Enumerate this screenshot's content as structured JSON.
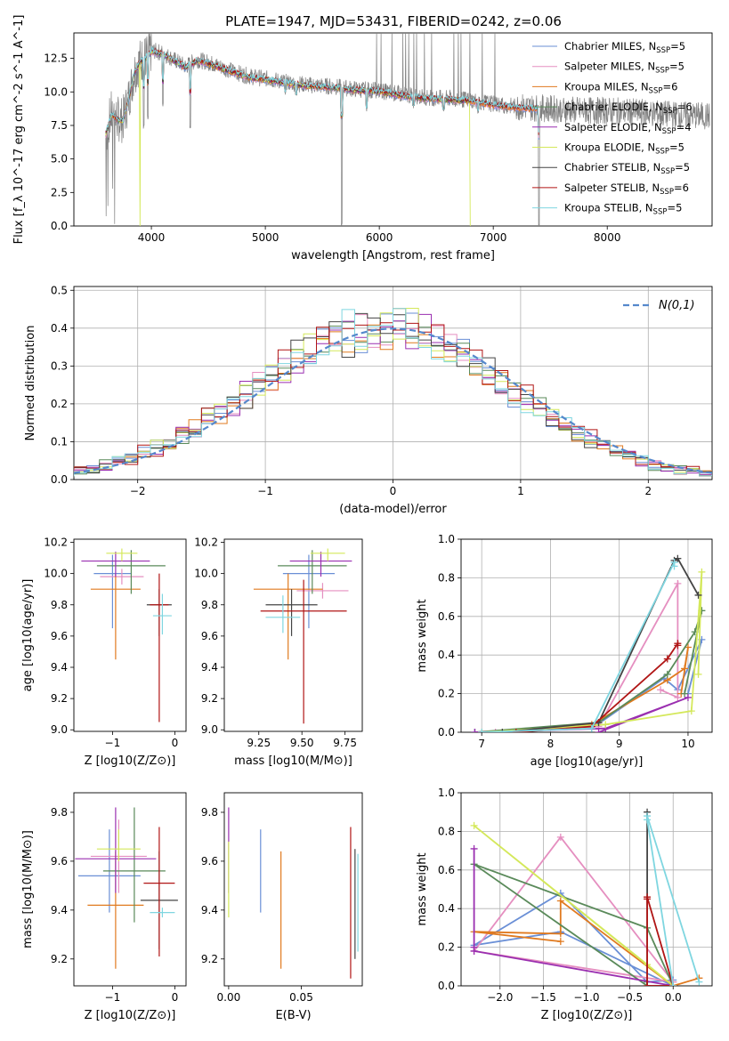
{
  "figure_title": "PLATE=1947, MJD=53431, FIBERID=0242, z=0.06",
  "colors": {
    "Chabrier MILES": "#6a8fd6",
    "Salpeter MILES": "#e58fc0",
    "Kroupa MILES": "#e07a1f",
    "Chabrier ELODIE": "#5a8a5a",
    "Salpeter ELODIE": "#9a2fb0",
    "Kroupa ELODIE": "#d4e85a",
    "Chabrier STELIB": "#444444",
    "Salpeter STELIB": "#b01515",
    "Kroupa STELIB": "#7fd6e0",
    "data": "#808080"
  },
  "chart_data": [
    {
      "id": "spectrum",
      "type": "line",
      "title": "PLATE=1947, MJD=53431, FIBERID=0242, z=0.06",
      "xlabel": "wavelength [Angstrom, rest frame]",
      "ylabel": "Flux [f_λ 10^-17 erg cm^-2 s^-1 A^-1]",
      "xlim": [
        3320,
        8920
      ],
      "ylim": [
        0,
        14.4
      ],
      "xticks": [
        4000,
        5000,
        6000,
        7000,
        8000
      ],
      "yticks": [
        0.0,
        2.5,
        5.0,
        7.5,
        10.0,
        12.5
      ],
      "legend_position": "top-right",
      "legend": [
        "Chabrier MILES, N_SSP=5",
        "Salpeter MILES, N_SSP=5",
        "Kroupa MILES, N_SSP=6",
        "Chabrier ELODIE, N_SSP=6",
        "Salpeter ELODIE, N_SSP=4",
        "Kroupa ELODIE, N_SSP=5",
        "Chabrier STELIB, N_SSP=5",
        "Salpeter STELIB, N_SSP=6",
        "Kroupa STELIB, N_SSP=5"
      ],
      "continuum": {
        "x": [
          3600,
          3650,
          3700,
          3750,
          3800,
          3850,
          3900,
          3950,
          4000,
          4100,
          4200,
          4300,
          4400,
          4500,
          4600,
          4700,
          4800,
          4900,
          5000,
          5200,
          5400,
          5600,
          5800,
          6000,
          6200,
          6400,
          6600,
          6800,
          7000,
          7200,
          7400,
          7600,
          7800,
          8000,
          8200,
          8400,
          8600,
          8900
        ],
        "y": [
          6.9,
          8.4,
          8.0,
          7.9,
          9.5,
          11.5,
          12.3,
          12.6,
          13.1,
          12.9,
          12.4,
          11.9,
          12.4,
          12.2,
          11.9,
          11.6,
          11.3,
          11.1,
          11.0,
          10.7,
          10.5,
          10.4,
          10.2,
          10.1,
          9.8,
          9.6,
          9.5,
          9.4,
          9.1,
          8.9,
          8.8,
          8.7,
          8.6,
          8.6,
          8.5,
          8.4,
          8.3,
          8.2
        ]
      },
      "absorption_dips": [
        {
          "x": 3934,
          "y": 7.5
        },
        {
          "x": 3969,
          "y": 8.0
        },
        {
          "x": 4102,
          "y": 9.0
        },
        {
          "x": 4340,
          "y": 7.5
        },
        {
          "x": 5175,
          "y": 10.0
        },
        {
          "x": 5270,
          "y": 9.8
        },
        {
          "x": 5577,
          "y": 10.3
        },
        {
          "x": 5670,
          "y": 0.0
        },
        {
          "x": 5890,
          "y": 8.8
        },
        {
          "x": 6300,
          "y": 9.0
        },
        {
          "x": 6563,
          "y": 8.7
        },
        {
          "x": 6867,
          "y": 8.6
        },
        {
          "x": 7400,
          "y": 0.0
        },
        {
          "x": 7600,
          "y": 8.0
        }
      ]
    },
    {
      "id": "residuals",
      "type": "step",
      "xlabel": "(data-model)/error",
      "ylabel": "Normed distribution",
      "xlim": [
        -2.5,
        2.5
      ],
      "ylim": [
        0,
        0.51
      ],
      "xticks": [
        -2,
        -1,
        0,
        1,
        2
      ],
      "yticks": [
        0.0,
        0.1,
        0.2,
        0.3,
        0.4,
        0.5
      ],
      "legend_position": "top-right",
      "reference_label": "N(0,1)",
      "reference_color": "#5588cc"
    },
    {
      "id": "age_vs_Z",
      "type": "errorbar",
      "xlabel": "Z [log10(Z/Z⊙)]",
      "ylabel": "age  [log10(age/yr)]",
      "xlim": [
        -1.62,
        0.18
      ],
      "ylim": [
        8.99,
        10.22
      ],
      "xticks": [
        -1,
        0
      ],
      "yticks": [
        9.0,
        9.2,
        9.4,
        9.6,
        9.8,
        10.0,
        10.2
      ],
      "points": [
        {
          "model": "Chabrier MILES",
          "x": -1.0,
          "y": 10.0,
          "xerr": 0.3,
          "yerr": [
            0.35,
            0.12
          ]
        },
        {
          "model": "Salpeter MILES",
          "x": -0.85,
          "y": 9.98,
          "xerr": 0.35,
          "yerr": [
            0.05,
            0.05
          ]
        },
        {
          "model": "Kroupa MILES",
          "x": -0.95,
          "y": 9.9,
          "xerr": 0.4,
          "yerr": [
            0.45,
            0.1
          ]
        },
        {
          "model": "Chabrier ELODIE",
          "x": -0.7,
          "y": 10.05,
          "xerr": 0.55,
          "yerr": [
            0.18,
            0.1
          ]
        },
        {
          "model": "Salpeter ELODIE",
          "x": -0.95,
          "y": 10.08,
          "xerr": 0.55,
          "yerr": [
            0.1,
            0.06
          ]
        },
        {
          "model": "Kroupa ELODIE",
          "x": -0.85,
          "y": 10.13,
          "xerr": 0.25,
          "yerr": [
            0.05,
            0.03
          ]
        },
        {
          "model": "Chabrier STELIB",
          "x": -0.25,
          "y": 9.8,
          "xerr": 0.2,
          "yerr": [
            0.2,
            0.1
          ]
        },
        {
          "model": "Salpeter STELIB",
          "x": -0.25,
          "y": 9.8,
          "xerr": 0.15,
          "yerr": [
            0.75,
            0.2
          ]
        },
        {
          "model": "Kroupa STELIB",
          "x": -0.2,
          "y": 9.73,
          "xerr": 0.15,
          "yerr": [
            0.12,
            0.14
          ]
        }
      ]
    },
    {
      "id": "age_vs_mass",
      "type": "errorbar",
      "xlabel": "mass [log10(M/M⊙)]",
      "ylabel": "",
      "xlim": [
        9.05,
        9.85
      ],
      "ylim": [
        8.99,
        10.22
      ],
      "xticks": [
        9.25,
        9.5,
        9.75
      ],
      "yticks": [
        9.0,
        9.2,
        9.4,
        9.6,
        9.8,
        10.0,
        10.2
      ],
      "points": [
        {
          "model": "Chabrier MILES",
          "x": 9.54,
          "y": 10.0,
          "xerr": 0.15,
          "yerr": [
            0.35,
            0.12
          ]
        },
        {
          "model": "Salpeter MILES",
          "x": 9.62,
          "y": 9.89,
          "xerr": 0.15,
          "yerr": [
            0.05,
            0.05
          ]
        },
        {
          "model": "Kroupa MILES",
          "x": 9.42,
          "y": 9.9,
          "xerr": 0.2,
          "yerr": [
            0.45,
            0.1
          ]
        },
        {
          "model": "Chabrier ELODIE",
          "x": 9.56,
          "y": 10.05,
          "xerr": 0.2,
          "yerr": [
            0.18,
            0.1
          ]
        },
        {
          "model": "Salpeter ELODIE",
          "x": 9.61,
          "y": 10.08,
          "xerr": 0.18,
          "yerr": [
            0.1,
            0.06
          ]
        },
        {
          "model": "Kroupa ELODIE",
          "x": 9.65,
          "y": 10.13,
          "xerr": 0.1,
          "yerr": [
            0.05,
            0.03
          ]
        },
        {
          "model": "Chabrier STELIB",
          "x": 9.44,
          "y": 9.8,
          "xerr": 0.15,
          "yerr": [
            0.2,
            0.1
          ]
        },
        {
          "model": "Salpeter STELIB",
          "x": 9.51,
          "y": 9.76,
          "xerr": 0.25,
          "yerr": [
            0.72,
            0.2
          ]
        },
        {
          "model": "Kroupa STELIB",
          "x": 9.39,
          "y": 9.72,
          "xerr": 0.1,
          "yerr": [
            0.1,
            0.14
          ]
        }
      ]
    },
    {
      "id": "weight_vs_age",
      "type": "line",
      "xlabel": "age  [log10(age/yr)]",
      "ylabel": "mass weight",
      "xlim": [
        6.7,
        10.35
      ],
      "ylim": [
        0,
        1.0
      ],
      "xticks": [
        7,
        8,
        9,
        10
      ],
      "yticks": [
        0.0,
        0.2,
        0.4,
        0.6,
        0.8,
        1.0
      ],
      "series": [
        {
          "name": "Chabrier MILES",
          "x": [
            6.9,
            8.6,
            9.65,
            9.85,
            10.2,
            10.0
          ],
          "y": [
            0.0,
            0.02,
            0.28,
            0.22,
            0.48,
            0.2
          ]
        },
        {
          "name": "Salpeter MILES",
          "x": [
            7.2,
            8.7,
            9.85,
            9.85,
            9.6
          ],
          "y": [
            0.0,
            0.03,
            0.77,
            0.18,
            0.22
          ]
        },
        {
          "name": "Kroupa MILES",
          "x": [
            7.5,
            8.6,
            9.7,
            9.95,
            10.0,
            9.9
          ],
          "y": [
            0.0,
            0.04,
            0.27,
            0.33,
            0.44,
            0.2
          ]
        },
        {
          "name": "Chabrier ELODIE",
          "x": [
            6.9,
            8.7,
            9.7,
            10.1,
            10.2,
            9.95
          ],
          "y": [
            0.0,
            0.05,
            0.3,
            0.52,
            0.63,
            0.2
          ]
        },
        {
          "name": "Salpeter ELODIE",
          "x": [
            6.9,
            8.8,
            10.0,
            8.7
          ],
          "y": [
            0.0,
            0.02,
            0.18,
            0.0
          ]
        },
        {
          "name": "Kroupa ELODIE",
          "x": [
            7.0,
            8.8,
            10.05,
            10.2,
            10.15
          ],
          "y": [
            0.0,
            0.04,
            0.11,
            0.83,
            0.3
          ]
        },
        {
          "name": "Chabrier STELIB",
          "x": [
            7.3,
            8.7,
            9.8,
            9.85,
            10.15
          ],
          "y": [
            0.0,
            0.05,
            0.89,
            0.9,
            0.71
          ]
        },
        {
          "name": "Salpeter STELIB",
          "x": [
            7.5,
            8.6,
            9.7,
            9.85,
            9.85
          ],
          "y": [
            0.0,
            0.03,
            0.38,
            0.46,
            0.45
          ]
        },
        {
          "name": "Kroupa STELIB",
          "x": [
            7.0,
            8.6,
            9.8,
            9.8
          ],
          "y": [
            0.0,
            0.02,
            0.88,
            0.86
          ]
        }
      ]
    },
    {
      "id": "mass_vs_Z",
      "type": "errorbar",
      "xlabel": "Z [log10(Z/Z⊙)]",
      "ylabel": "mass [log10(M/M⊙)]",
      "xlim": [
        -1.62,
        0.18
      ],
      "ylim": [
        9.09,
        9.88
      ],
      "xticks": [
        -1,
        0
      ],
      "yticks": [
        9.2,
        9.4,
        9.6,
        9.8
      ],
      "points": [
        {
          "model": "Chabrier MILES",
          "x": -1.05,
          "y": 9.54,
          "xerr": 0.5,
          "yerr": [
            0.15,
            0.19
          ]
        },
        {
          "model": "Salpeter MILES",
          "x": -0.9,
          "y": 9.62,
          "xerr": 0.45,
          "yerr": [
            0.15,
            0.15
          ]
        },
        {
          "model": "Kroupa MILES",
          "x": -0.95,
          "y": 9.42,
          "xerr": 0.45,
          "yerr": [
            0.26,
            0.22
          ]
        },
        {
          "model": "Chabrier ELODIE",
          "x": -0.65,
          "y": 9.56,
          "xerr": 0.5,
          "yerr": [
            0.21,
            0.26
          ]
        },
        {
          "model": "Salpeter ELODIE",
          "x": -0.95,
          "y": 9.61,
          "xerr": 0.65,
          "yerr": [
            0.14,
            0.21
          ]
        },
        {
          "model": "Kroupa ELODIE",
          "x": -0.9,
          "y": 9.65,
          "xerr": 0.35,
          "yerr": [
            0.05,
            0.08
          ]
        },
        {
          "model": "Chabrier STELIB",
          "x": -0.25,
          "y": 9.44,
          "xerr": 0.3,
          "yerr": [
            0.2,
            0.2
          ]
        },
        {
          "model": "Salpeter STELIB",
          "x": -0.25,
          "y": 9.51,
          "xerr": 0.25,
          "yerr": [
            0.3,
            0.23
          ]
        },
        {
          "model": "Kroupa STELIB",
          "x": -0.2,
          "y": 9.39,
          "xerr": 0.2,
          "yerr": [
            0.02,
            0.02
          ]
        }
      ]
    },
    {
      "id": "mass_vs_EBV",
      "type": "errorbar",
      "xlabel": "E(B-V)",
      "ylabel": "",
      "xlim": [
        -0.003,
        0.092
      ],
      "ylim": [
        9.09,
        9.88
      ],
      "xticks": [
        0.0,
        0.05
      ],
      "yticks": [
        9.2,
        9.4,
        9.6,
        9.8
      ],
      "points": [
        {
          "model": "Chabrier MILES",
          "x": 0.022,
          "y": 9.54,
          "xerr": 0,
          "yerr": [
            0.15,
            0.19
          ]
        },
        {
          "model": "Kroupa MILES",
          "x": 0.036,
          "y": 9.4,
          "xerr": 0,
          "yerr": [
            0.24,
            0.24
          ]
        },
        {
          "model": "Salpeter ELODIE",
          "x": 0.0,
          "y": 9.61,
          "xerr": 0,
          "yerr": [
            0.14,
            0.21
          ]
        },
        {
          "model": "Kroupa ELODIE",
          "x": 0.0,
          "y": 9.55,
          "xerr": 0,
          "yerr": [
            0.18,
            0.13
          ]
        },
        {
          "model": "Chabrier STELIB",
          "x": 0.087,
          "y": 9.44,
          "xerr": 0,
          "yerr": [
            0.24,
            0.21
          ]
        },
        {
          "model": "Salpeter STELIB",
          "x": 0.084,
          "y": 9.43,
          "xerr": 0,
          "yerr": [
            0.31,
            0.31
          ]
        },
        {
          "model": "Kroupa STELIB",
          "x": 0.089,
          "y": 9.43,
          "xerr": 0,
          "yerr": [
            0.2,
            0.2
          ]
        }
      ]
    },
    {
      "id": "weight_vs_Z",
      "type": "line",
      "xlabel": "Z [log10(Z/Z⊙)]",
      "ylabel": "mass weight",
      "xlim": [
        -2.45,
        0.45
      ],
      "ylim": [
        0,
        1.0
      ],
      "xticks": [
        -2.0,
        -1.5,
        -1.0,
        -0.5,
        0.0
      ],
      "yticks": [
        0.0,
        0.2,
        0.4,
        0.6,
        0.8,
        1.0
      ],
      "series": [
        {
          "name": "Chabrier MILES",
          "x": [
            0.0,
            -1.3,
            -2.3,
            -1.3,
            -0.3,
            0.0
          ],
          "y": [
            0.0,
            0.28,
            0.21,
            0.48,
            0.02,
            0.03
          ]
        },
        {
          "name": "Salpeter MILES",
          "x": [
            0.0,
            -1.3,
            -2.3,
            0.0
          ],
          "y": [
            0.02,
            0.77,
            0.18,
            0.02
          ]
        },
        {
          "name": "Kroupa MILES",
          "x": [
            0.3,
            0.0,
            -1.3,
            -1.3,
            -2.3,
            -1.3
          ],
          "y": [
            0.04,
            0.0,
            0.44,
            0.27,
            0.28,
            0.23
          ]
        },
        {
          "name": "Chabrier ELODIE",
          "x": [
            0.0,
            -0.3,
            -2.3,
            -0.3,
            -0.3
          ],
          "y": [
            0.0,
            0.3,
            0.63,
            0.0,
            0.02
          ]
        },
        {
          "name": "Salpeter ELODIE",
          "x": [
            0.0,
            -2.3,
            -2.3,
            -2.3
          ],
          "y": [
            0.0,
            0.18,
            0.71,
            0.2
          ]
        },
        {
          "name": "Kroupa ELODIE",
          "x": [
            0.0,
            -2.3,
            -0.3,
            0.0
          ],
          "y": [
            0.0,
            0.83,
            0.11,
            0.0
          ]
        },
        {
          "name": "Chabrier STELIB",
          "x": [
            0.0,
            -0.3,
            -0.3
          ],
          "y": [
            0.0,
            0.0,
            0.9
          ]
        },
        {
          "name": "Salpeter STELIB",
          "x": [
            0.0,
            -0.3,
            -0.3,
            -0.3,
            0.0
          ],
          "y": [
            0.0,
            0.46,
            0.45,
            0.0,
            0.0
          ]
        },
        {
          "name": "Kroupa STELIB",
          "x": [
            0.3,
            -0.3,
            -0.3,
            0.0
          ],
          "y": [
            0.02,
            0.88,
            0.86,
            0.0
          ]
        }
      ]
    }
  ]
}
